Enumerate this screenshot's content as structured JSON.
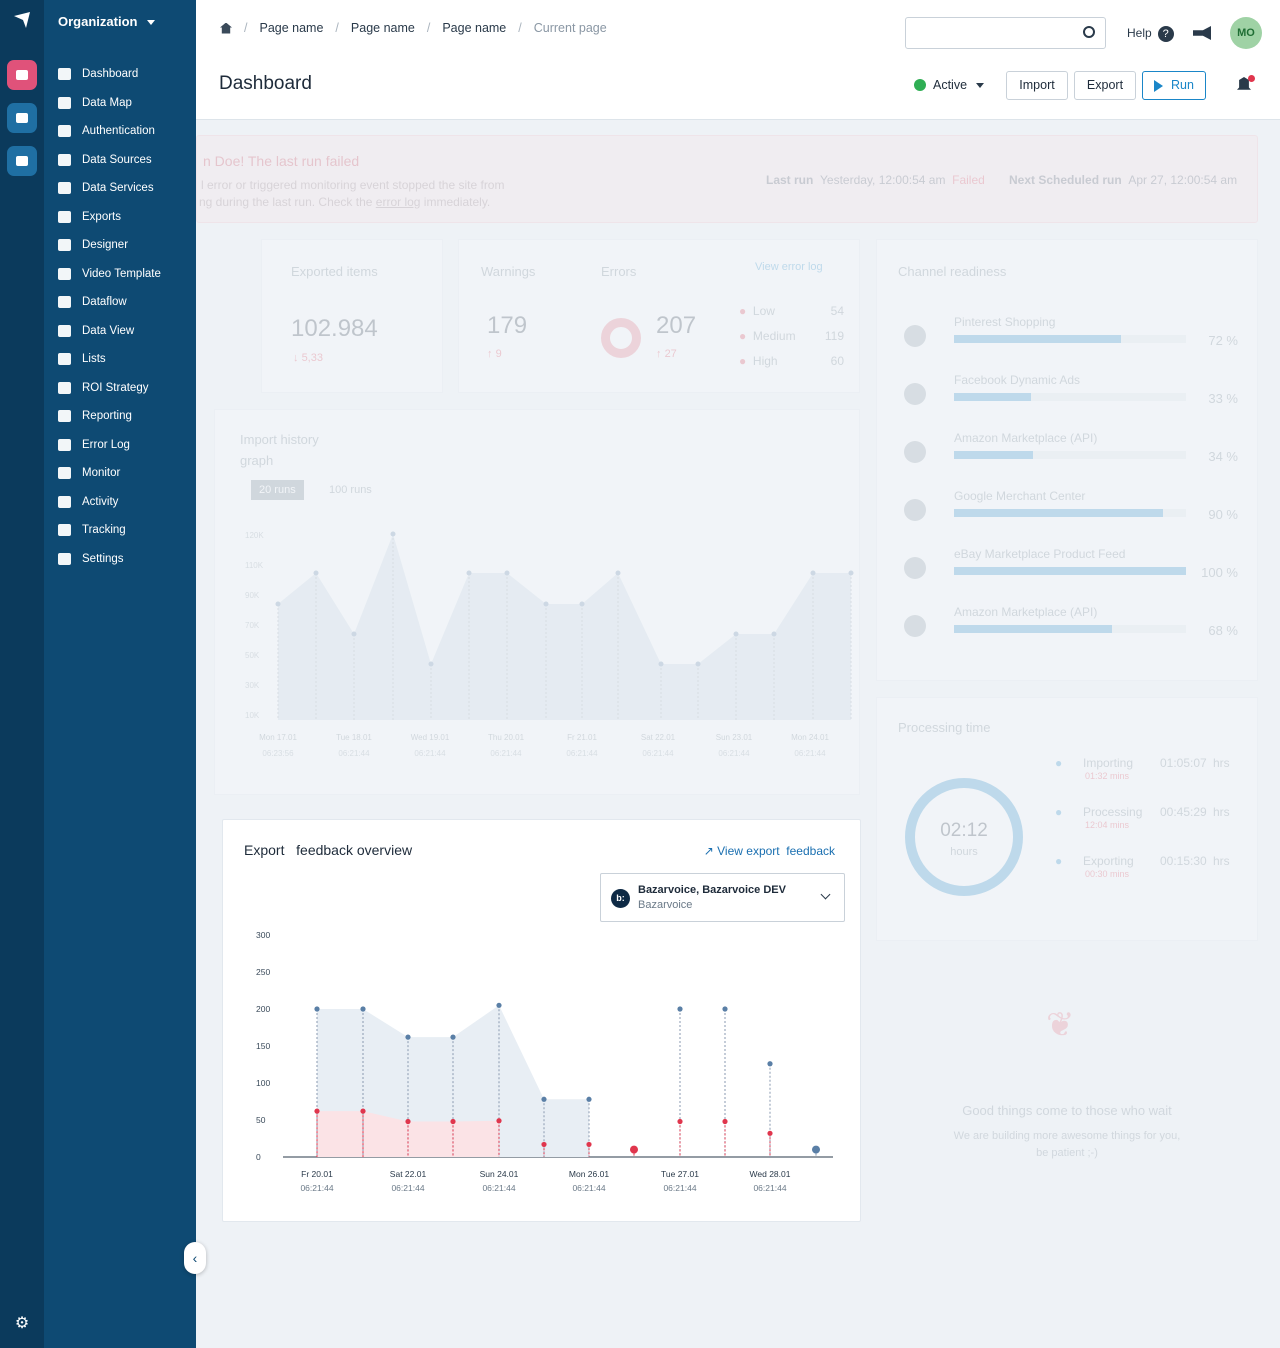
{
  "sidebar": {
    "org": "Organization",
    "items": [
      {
        "label": "Dashboard",
        "icon": "dashboard-icon"
      },
      {
        "label": "Data Map",
        "icon": "data-map-icon"
      },
      {
        "label": "Authentication",
        "icon": "lock-icon"
      },
      {
        "label": "Data Sources",
        "icon": "data-sources-icon"
      },
      {
        "label": "Data Services",
        "icon": "data-services-icon"
      },
      {
        "label": "Exports",
        "icon": "export-icon"
      },
      {
        "label": "Designer",
        "icon": "brush-icon"
      },
      {
        "label": "Video Template",
        "icon": "video-icon"
      },
      {
        "label": "Dataflow",
        "icon": "dataflow-icon"
      },
      {
        "label": "Data View",
        "icon": "table-icon"
      },
      {
        "label": "Lists",
        "icon": "list-icon"
      },
      {
        "label": "ROI Strategy",
        "icon": "dollar-icon"
      },
      {
        "label": "Reporting",
        "icon": "pie-icon"
      },
      {
        "label": "Error Log",
        "icon": "alert-icon"
      },
      {
        "label": "Monitor",
        "icon": "bell-icon"
      },
      {
        "label": "Activity",
        "icon": "activity-icon"
      },
      {
        "label": "Tracking",
        "icon": "flag-icon"
      },
      {
        "label": "Settings",
        "icon": "gear-icon"
      }
    ],
    "rail_colors": [
      "#e0527a",
      "#1f6fa3",
      "#1f6fa3"
    ]
  },
  "header": {
    "breadcrumbs": [
      "Page name",
      "Page name",
      "Page name"
    ],
    "current": "Current page",
    "title": "Dashboard",
    "help": "Help",
    "avatar": "MO",
    "status": "Active",
    "import": "Import",
    "export": "Export",
    "run": "Run"
  },
  "alert": {
    "title": "n Doe!  The last run failed",
    "line1": "l error or triggered monitoring event stopped the site from",
    "line2_a": "ng during the last run. Check the ",
    "link": "error log",
    "line2_b": " immediately.",
    "last_run_label": "Last run",
    "last_run": "Yesterday, 12:00:54 am",
    "failed": "Failed",
    "next_label": "Next Scheduled run",
    "next": "Apr 27, 12:00:54 am"
  },
  "stats": {
    "exported_label": "Exported items",
    "exported": "102.984",
    "exported_delta": "5,33",
    "warnings_label": "Warnings",
    "warnings": "179",
    "warnings_delta": "9",
    "errors_label": "Errors",
    "errors": "207",
    "errors_delta": "27",
    "view_error": "View error log",
    "levels": [
      {
        "name": "Low",
        "n": "54"
      },
      {
        "name": "Medium",
        "n": "119"
      },
      {
        "name": "High",
        "n": "60"
      }
    ]
  },
  "channel": {
    "title": "Channel readiness",
    "items": [
      {
        "name": "Pinterest Shopping",
        "pct": "72 %",
        "v": 0.72,
        "icon": "pinterest-icon"
      },
      {
        "name": "Facebook Dynamic Ads",
        "pct": "33 %",
        "v": 0.33,
        "icon": "facebook-icon"
      },
      {
        "name": "Amazon Marketplace (API)",
        "pct": "34 %",
        "v": 0.34,
        "icon": "amazon-icon"
      },
      {
        "name": "Google Merchant Center",
        "pct": "90 %",
        "v": 0.9,
        "icon": "google-icon"
      },
      {
        "name": "eBay Marketplace Product Feed",
        "pct": "100 %",
        "v": 1.0,
        "icon": "ebay-icon"
      },
      {
        "name": "Amazon Marketplace (API)",
        "pct": "68 %",
        "v": 0.68,
        "icon": "amazon-icon"
      }
    ]
  },
  "import_history": {
    "title1": "Import history",
    "title2": "graph",
    "tab1": "20 runs",
    "tab2": "100 runs",
    "yticks": [
      "120K",
      "110K",
      "90K",
      "70K",
      "50K",
      "30K",
      "10K"
    ],
    "xlabels": [
      "Mon 17.01",
      "Tue 18.01",
      "Wed 19.01",
      "Thu 20.01",
      "Fr 21.01",
      "Sat 22.01",
      "Sun 23.01",
      "Mon 24.01"
    ],
    "xtime": "06:21:44",
    "xtime0": "06:23:56"
  },
  "processing": {
    "title": "Processing time",
    "center": "02:12",
    "center_sub": "hours",
    "rows": [
      {
        "name": "Importing",
        "sub": "01:32 mins",
        "time": "01:05:07",
        "unit": "hrs"
      },
      {
        "name": "Processing",
        "sub": "12:04 mins",
        "time": "00:45:29",
        "unit": "hrs"
      },
      {
        "name": "Exporting",
        "sub": "00:30 mins",
        "time": "00:15:30",
        "unit": "hrs"
      }
    ]
  },
  "empty": {
    "title": "Good things come to those who wait",
    "line1": "We are building more awesome things for you,",
    "line2": "be patient ;-)"
  },
  "efb": {
    "title_a": "Export",
    "title_b": "feedback overview",
    "view_a": "View",
    "view_b": "export",
    "view_c": "feedback",
    "dd_title": "Bazarvoice, Bazarvoice DEV",
    "dd_sub": "Bazarvoice",
    "dd_logo": "b:"
  },
  "chart_data": {
    "type": "line",
    "y_ticks": [
      "300",
      "250",
      "200",
      "150",
      "100",
      "50",
      "0"
    ],
    "ylim": [
      0,
      300
    ],
    "x_labels": [
      "Fr 20.01",
      "Sat 22.01",
      "Sun 24.01",
      "Mon 26.01",
      "Tue 27.01",
      "Wed 28.01"
    ],
    "x_time": "06:21:44",
    "series": [
      {
        "color": "#5a7fa6",
        "values": [
          200,
          200,
          162,
          162,
          205,
          78,
          78,
          null,
          200,
          200,
          126,
          10
        ]
      },
      {
        "color": "#e0364d",
        "values": [
          62,
          62,
          48,
          48,
          49,
          17,
          17,
          10,
          48,
          48,
          32,
          null
        ]
      }
    ]
  }
}
